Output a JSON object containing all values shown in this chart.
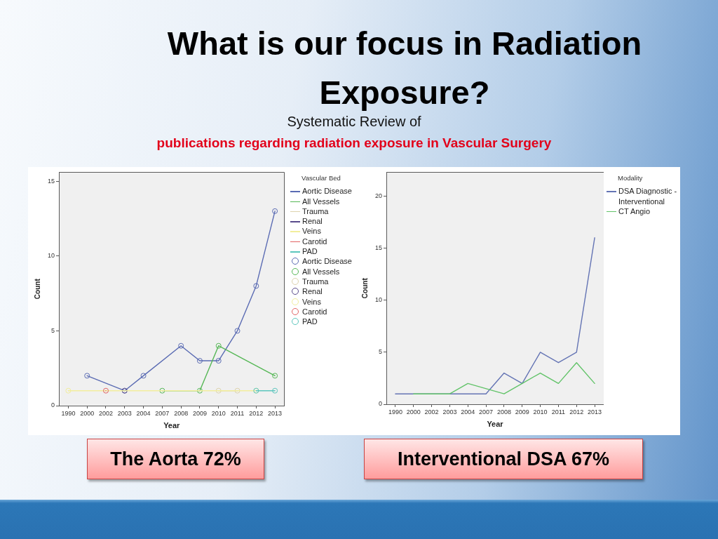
{
  "chart_data": [
    {
      "type": "line",
      "title": "What is our focus in Radiation Exposure?",
      "subtitle": "Systematic Review of\npublications regarding radiation exposure in Vascular Surgery",
      "xlabel": "Year",
      "ylabel": "Count",
      "legend_title": "Vascular Bed",
      "annotations": [
        "The Aorta 72%"
      ],
      "categories": [
        "1990",
        "2000",
        "2002",
        "2003",
        "2004",
        "2007",
        "2008",
        "2009",
        "2010",
        "2011",
        "2012",
        "2013"
      ],
      "series": [
        {
          "name": "Aortic Disease",
          "color": "#5a6bb3",
          "values": [
            null,
            2,
            null,
            1,
            2,
            null,
            4,
            3,
            3,
            5,
            8,
            13
          ]
        },
        {
          "name": "All Vessels",
          "color": "#55b755",
          "values": [
            null,
            null,
            null,
            null,
            null,
            1,
            null,
            1,
            4,
            null,
            null,
            2
          ]
        },
        {
          "name": "Trauma",
          "color": "#ddd3ad",
          "values": [
            null,
            null,
            null,
            null,
            null,
            null,
            null,
            null,
            1,
            1,
            null,
            null
          ]
        },
        {
          "name": "Renal",
          "color": "#5a4b8c",
          "values": [
            null,
            null,
            null,
            1,
            null,
            null,
            null,
            null,
            null,
            null,
            null,
            null
          ]
        },
        {
          "name": "Veins",
          "color": "#f2ee9c",
          "values": [
            1,
            null,
            null,
            null,
            null,
            null,
            null,
            null,
            null,
            null,
            1,
            null
          ]
        },
        {
          "name": "Carotid",
          "color": "#e26464",
          "values": [
            null,
            null,
            1,
            null,
            null,
            null,
            null,
            null,
            null,
            null,
            null,
            null
          ]
        },
        {
          "name": "PAD",
          "color": "#5cc6bd",
          "values": [
            null,
            null,
            null,
            null,
            null,
            null,
            null,
            null,
            null,
            null,
            1,
            1
          ]
        }
      ],
      "ylim": [
        0,
        15.6
      ],
      "yticks": [
        0,
        5,
        10,
        15
      ],
      "legend": "right",
      "marker": "circle"
    },
    {
      "type": "line",
      "xlabel": "Year",
      "ylabel": "Count",
      "legend_title": "Modality",
      "annotations": [
        "Interventional DSA 67%"
      ],
      "categories": [
        "1990",
        "2000",
        "2002",
        "2003",
        "2004",
        "2007",
        "2008",
        "2009",
        "2010",
        "2011",
        "2012",
        "2013"
      ],
      "series": [
        {
          "name": "DSA Diagnostic - Interventional",
          "color": "#6474b4",
          "values": [
            1,
            1,
            1,
            1,
            1,
            1,
            3,
            2,
            5,
            4,
            5,
            16
          ]
        },
        {
          "name": "CT Angio",
          "color": "#62c369",
          "values": [
            null,
            1,
            1,
            1,
            2,
            null,
            1,
            2,
            3,
            2,
            4,
            2
          ]
        }
      ],
      "ylim": [
        0,
        22.3
      ],
      "yticks": [
        0,
        5,
        10,
        15,
        20
      ],
      "legend": "right"
    }
  ]
}
